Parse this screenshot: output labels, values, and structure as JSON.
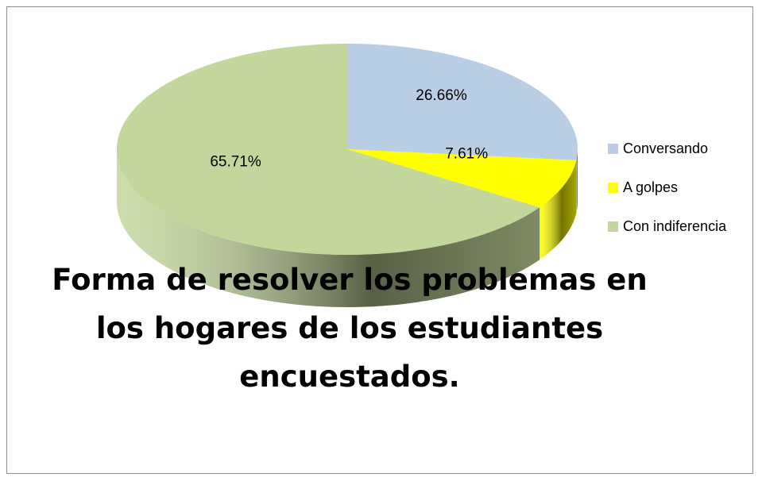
{
  "chart_data": {
    "type": "pie3d",
    "title": "Forma de resolver los problemas en los hogares de los estudiantes encuestados.",
    "categories": [
      "Conversando",
      "A golpes",
      "Con indiferencia"
    ],
    "values": [
      26.66,
      7.61,
      65.71
    ],
    "value_labels": [
      "26.66%",
      "7.61%",
      "65.71%"
    ],
    "colors": [
      "#b9cde5",
      "#ffff00",
      "#c3d69b"
    ],
    "legend": "right"
  }
}
